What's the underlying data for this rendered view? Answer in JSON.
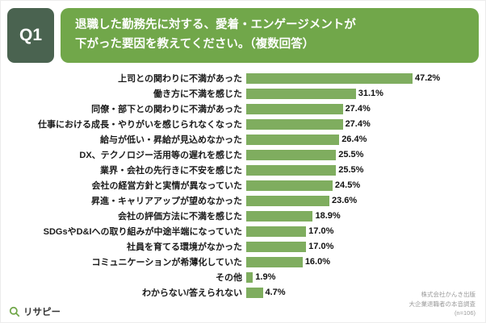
{
  "header": {
    "q_label": "Q1",
    "title_line1": "退職した勤務先に対する、愛着・エンゲージメントが",
    "title_line2": "下がった要因を教えてください。（複数回答）"
  },
  "chart_data": {
    "type": "bar",
    "orientation": "horizontal",
    "title": "退職した勤務先に対する、愛着・エンゲージメントが下がった要因を教えてください。（複数回答）",
    "categories": [
      "上司との関わりに不満があった",
      "働き方に不満を感じた",
      "同僚・部下との関わりに不満があった",
      "仕事における成長・やりがいを感じられなくなった",
      "給与が低い・昇給が見込めなかった",
      "DX、テクノロジー活用等の遅れを感じた",
      "業界・会社の先行きに不安を感じた",
      "会社の経営方針と実情が異なっていた",
      "昇進・キャリアアップが望めなかった",
      "会社の評価方法に不満を感じた",
      "SDGsやD&Iへの取り組みが中途半端になっていた",
      "社員を育てる環境がなかった",
      "コミュニケーションが希薄化していた",
      "その他",
      "わからない/答えられない"
    ],
    "values": [
      47.2,
      31.1,
      27.4,
      27.4,
      26.4,
      25.5,
      25.5,
      24.5,
      23.6,
      18.9,
      17.0,
      17.0,
      16.0,
      1.9,
      4.7
    ],
    "value_labels": [
      "47.2%",
      "31.1%",
      "27.4%",
      "27.4%",
      "26.4%",
      "25.5%",
      "25.5%",
      "24.5%",
      "23.6%",
      "18.9%",
      "17.0%",
      "17.0%",
      "16.0%",
      "1.9%",
      "4.7%"
    ],
    "xlabel": "",
    "ylabel": "",
    "grid": false,
    "legend": false,
    "xlim": [
      0,
      50
    ]
  },
  "footer": {
    "logo_text": "リサピー",
    "source_line1": "株式会社かんき出版",
    "source_line2": "大企業退職者の本音調査",
    "source_line3": "(n=106)"
  },
  "colors": {
    "q_bg": "#4a6350",
    "title_bg": "#71a74a",
    "bar": "#7fad5f"
  }
}
